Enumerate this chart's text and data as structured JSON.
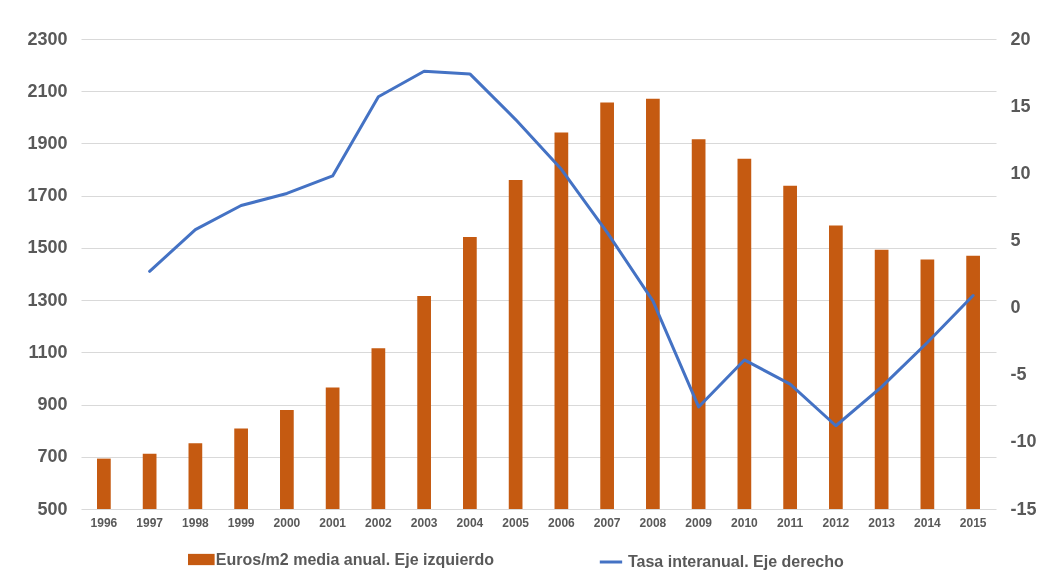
{
  "chart_data": {
    "type": "bar",
    "categories": [
      "1996",
      "1997",
      "1998",
      "1999",
      "2000",
      "2001",
      "2002",
      "2003",
      "2004",
      "2005",
      "2006",
      "2007",
      "2008",
      "2009",
      "2010",
      "2011",
      "2012",
      "2013",
      "2014",
      "2015"
    ],
    "series": [
      {
        "name": "Euros/m2 media anual. Eje izquierdo",
        "color": "#c55a11",
        "values": [
          693,
          712,
          752,
          808,
          879,
          965,
          1116,
          1316,
          1542,
          1760,
          1942,
          2057,
          2071,
          1916,
          1841,
          1738,
          1586,
          1493,
          1456,
          1470
        ]
      },
      {
        "name": "Tasa interanual. Eje derecho",
        "type": "line",
        "axis": "y2",
        "color": "#4472c4",
        "line_style": "solid",
        "values": [
          null,
          2.7,
          5.8,
          7.6,
          8.5,
          9.8,
          15.7,
          17.6,
          17.4,
          14.0,
          10.3,
          5.6,
          0.5,
          -7.4,
          -3.9,
          -5.7,
          -8.8,
          -5.9,
          -2.6,
          0.9
        ]
      }
    ],
    "ylim": [
      500,
      2300
    ],
    "yticks": [
      500,
      700,
      900,
      1100,
      1300,
      1500,
      1700,
      1900,
      2100,
      2300
    ],
    "y2lim": [
      -15,
      20
    ],
    "y2ticks": [
      -15,
      -10,
      -5,
      0,
      5,
      10,
      15,
      20
    ],
    "grid": "y",
    "legend": "bottom"
  }
}
